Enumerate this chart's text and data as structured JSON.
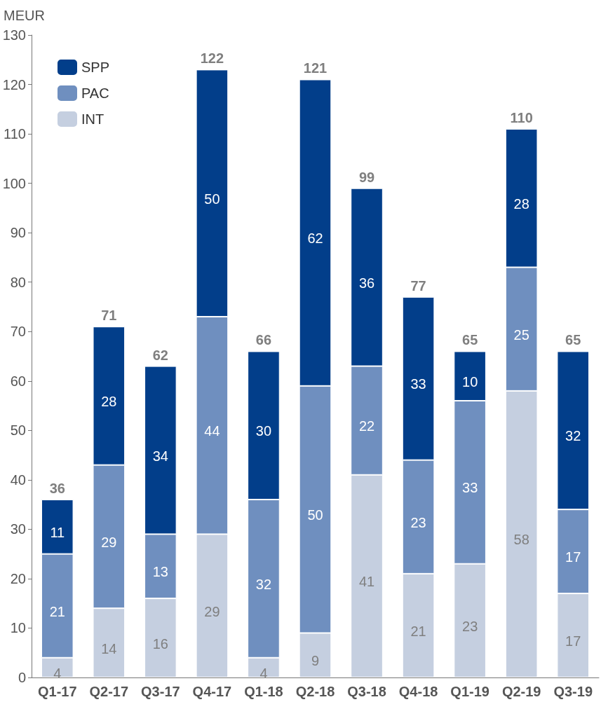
{
  "chart_data": {
    "type": "bar",
    "stacked": true,
    "ylabel": "MEUR",
    "categories": [
      "Q1-17",
      "Q2-17",
      "Q3-17",
      "Q4-17",
      "Q1-18",
      "Q2-18",
      "Q3-18",
      "Q4-18",
      "Q1-19",
      "Q2-19",
      "Q3-19"
    ],
    "series": [
      {
        "name": "INT",
        "color": "#c5cfe0",
        "values": [
          4,
          14,
          16,
          29,
          4,
          9,
          41,
          21,
          23,
          58,
          17
        ]
      },
      {
        "name": "PAC",
        "color": "#6f8fbf",
        "values": [
          21,
          29,
          13,
          44,
          32,
          50,
          22,
          23,
          33,
          25,
          17
        ]
      },
      {
        "name": "SPP",
        "color": "#023e8a",
        "values": [
          11,
          28,
          34,
          50,
          30,
          62,
          36,
          33,
          10,
          28,
          32
        ]
      }
    ],
    "totals": [
      "36",
      "71",
      "62",
      "122",
      "66",
      "121",
      "99",
      "77",
      "65",
      "110",
      "65"
    ],
    "data_labels": true,
    "ylim": [
      0,
      130
    ],
    "yticks": [
      0,
      10,
      20,
      30,
      40,
      50,
      60,
      70,
      80,
      90,
      100,
      110,
      120,
      130
    ],
    "grid": false,
    "legend": "top left"
  }
}
